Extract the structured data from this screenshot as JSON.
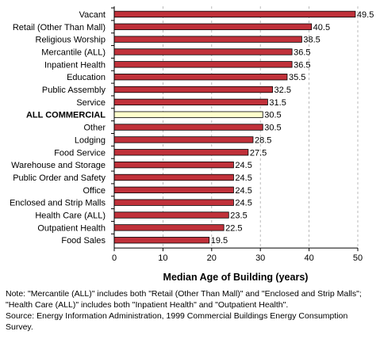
{
  "chart_data": {
    "type": "bar",
    "orientation": "horizontal",
    "categories": [
      "Vacant",
      "Retail (Other Than Mall)",
      "Religious Worship",
      "Mercantile (ALL)",
      "Inpatient Health",
      "Education",
      "Public Assembly",
      "Service",
      "ALL COMMERCIAL",
      "Other",
      "Lodging",
      "Food Service",
      "Warehouse and Storage",
      "Public Order and Safety",
      "Office",
      "Enclosed and Strip Malls",
      "Health Care (ALL)",
      "Outpatient Health",
      "Food Sales"
    ],
    "values": [
      49.5,
      40.5,
      38.5,
      36.5,
      36.5,
      35.5,
      32.5,
      31.5,
      30.5,
      30.5,
      28.5,
      27.5,
      24.5,
      24.5,
      24.5,
      24.5,
      23.5,
      22.5,
      19.5
    ],
    "value_labels": [
      "49.5",
      "40.5",
      "38.5",
      "36.5",
      "36.5",
      "35.5",
      "32.5",
      "31.5",
      "30.5",
      "30.5",
      "28.5",
      "27.5",
      "24.5",
      "24.5",
      "24.5",
      "24.5",
      "23.5",
      "22.5",
      "19.5"
    ],
    "highlight_category": "ALL COMMERCIAL",
    "xlabel": "Median Age of Building (years)",
    "xlim": [
      0,
      50
    ],
    "xticks": [
      "0",
      "10",
      "20",
      "30",
      "40",
      "50"
    ],
    "grid": "vertical dashed",
    "colors": {
      "bar": "#c0313a",
      "highlight_bar": "#ffffcc",
      "bar_border": "#000000",
      "grid": "#aaaaaa"
    }
  },
  "notes": {
    "line1": "Note: \"Mercantile (ALL)\" includes both \"Retail (Other Than Mall)\" and \"Enclosed and Strip Malls\";",
    "line2": "\"Health Care (ALL)\" includes both \"Inpatient Health\" and \"Outpatient Health\".",
    "line3": "Source: Energy Information Administration, 1999 Commercial Buildings Energy Consumption",
    "line4": "Survey."
  }
}
